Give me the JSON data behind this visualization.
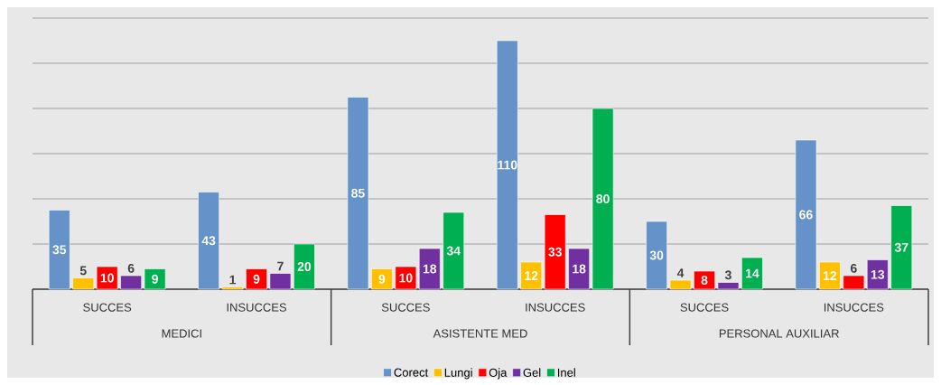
{
  "chart_data": {
    "type": "bar",
    "categories": [
      "SUCCES",
      "INSUCCES",
      "SUCCES",
      "INSUCCES",
      "SUCCES",
      "INSUCCES"
    ],
    "annotations": [
      "MEDICI",
      "ASISTENTE MED",
      "PERSONAL AUXILIAR"
    ],
    "series": [
      {
        "name": "Corect",
        "color": "#6592c8",
        "values": [
          35,
          43,
          85,
          110,
          30,
          66
        ]
      },
      {
        "name": "Lungi",
        "color": "#ffc000",
        "values": [
          5,
          1,
          9,
          12,
          4,
          12
        ]
      },
      {
        "name": "Oja",
        "color": "#ff0000",
        "values": [
          10,
          9,
          10,
          33,
          8,
          6
        ]
      },
      {
        "name": "Gel",
        "color": "#7030a0",
        "values": [
          6,
          7,
          18,
          18,
          3,
          13
        ]
      },
      {
        "name": "Inel",
        "color": "#00b050",
        "values": [
          9,
          20,
          34,
          80,
          14,
          37
        ]
      }
    ],
    "data_labels": true,
    "legend": "bottom",
    "grid": "y"
  }
}
